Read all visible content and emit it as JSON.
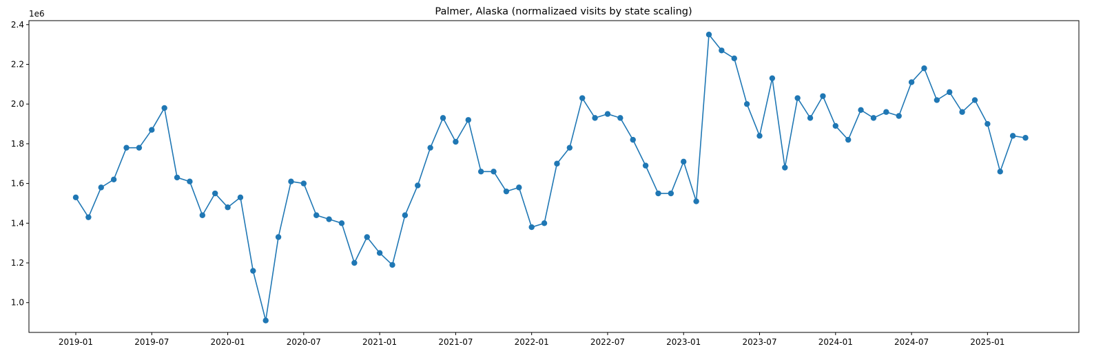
{
  "chart_data": {
    "type": "line",
    "title": "Palmer, Alaska (normalizaed visits by state scaling)",
    "xlabel": "",
    "ylabel": "",
    "y_offset_label": "1e6",
    "x_ticks": [
      "2019-01",
      "2019-07",
      "2020-01",
      "2020-07",
      "2021-01",
      "2021-07",
      "2022-01",
      "2022-07",
      "2023-01",
      "2023-07",
      "2024-01",
      "2024-07",
      "2025-01"
    ],
    "y_ticks": [
      "1.0",
      "1.2",
      "1.4",
      "1.6",
      "1.8",
      "2.0",
      "2.2",
      "2.4"
    ],
    "ylim": [
      0.85,
      2.42
    ],
    "grid": false,
    "series_color": "#1f77b4",
    "series": [
      {
        "name": "",
        "x": [
          "2019-01",
          "2019-02",
          "2019-03",
          "2019-04",
          "2019-05",
          "2019-06",
          "2019-07",
          "2019-08",
          "2019-09",
          "2019-10",
          "2019-11",
          "2019-12",
          "2020-01",
          "2020-02",
          "2020-03",
          "2020-04",
          "2020-05",
          "2020-06",
          "2020-07",
          "2020-08",
          "2020-09",
          "2020-10",
          "2020-11",
          "2020-12",
          "2021-01",
          "2021-02",
          "2021-03",
          "2021-04",
          "2021-05",
          "2021-06",
          "2021-07",
          "2021-08",
          "2021-09",
          "2021-10",
          "2021-11",
          "2021-12",
          "2022-01",
          "2022-02",
          "2022-03",
          "2022-04",
          "2022-05",
          "2022-06",
          "2022-07",
          "2022-08",
          "2022-09",
          "2022-10",
          "2022-11",
          "2022-12",
          "2023-01",
          "2023-02",
          "2023-03",
          "2023-04",
          "2023-05",
          "2023-06",
          "2023-07",
          "2023-08",
          "2023-09",
          "2023-10",
          "2023-11",
          "2023-12",
          "2024-01",
          "2024-02",
          "2024-03",
          "2024-04",
          "2024-05",
          "2024-06",
          "2024-07",
          "2024-08",
          "2024-09",
          "2024-10",
          "2024-11",
          "2024-12",
          "2025-01",
          "2025-02",
          "2025-03",
          "2025-04"
        ],
        "values": [
          1.53,
          1.43,
          1.58,
          1.62,
          1.78,
          1.78,
          1.87,
          1.98,
          1.63,
          1.61,
          1.44,
          1.55,
          1.48,
          1.53,
          1.16,
          0.91,
          1.33,
          1.61,
          1.6,
          1.44,
          1.42,
          1.4,
          1.2,
          1.33,
          1.25,
          1.19,
          1.44,
          1.59,
          1.78,
          1.93,
          1.81,
          1.92,
          1.66,
          1.66,
          1.56,
          1.58,
          1.38,
          1.4,
          1.7,
          1.78,
          2.03,
          1.93,
          1.95,
          1.93,
          1.82,
          1.69,
          1.55,
          1.55,
          1.71,
          1.51,
          2.35,
          2.27,
          2.23,
          2.0,
          1.84,
          2.13,
          1.68,
          2.03,
          1.93,
          2.04,
          1.89,
          1.82,
          1.97,
          1.93,
          1.96,
          1.94,
          2.11,
          2.18,
          2.02,
          2.06,
          1.96,
          2.02,
          1.9,
          1.66,
          1.84,
          1.83
        ]
      }
    ]
  }
}
